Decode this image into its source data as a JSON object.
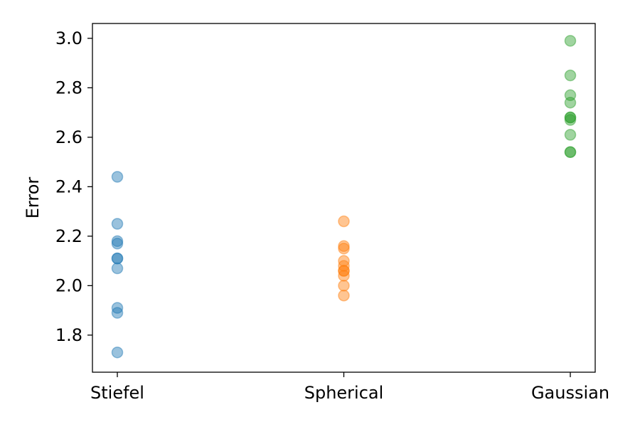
{
  "chart_data": {
    "type": "scatter",
    "title": "",
    "xlabel": "",
    "ylabel": "Error",
    "categories": [
      "Stiefel",
      "Spherical",
      "Gaussian"
    ],
    "ylim": [
      1.65,
      3.06
    ],
    "yticks": [
      1.8,
      2.0,
      2.2,
      2.4,
      2.6,
      2.8,
      3.0
    ],
    "ytick_labels": [
      "1.8",
      "2.0",
      "2.2",
      "2.4",
      "2.6",
      "2.8",
      "3.0"
    ],
    "grid": false,
    "legend": "none",
    "marker_opacity": 0.45,
    "series": [
      {
        "category": "Stiefel",
        "color": "#1f77b4",
        "values": [
          2.44,
          2.25,
          2.18,
          2.17,
          2.11,
          2.11,
          2.07,
          1.91,
          1.89,
          1.73
        ]
      },
      {
        "category": "Spherical",
        "color": "#ff7f0e",
        "values": [
          2.26,
          2.16,
          2.15,
          2.1,
          2.08,
          2.06,
          2.06,
          2.04,
          2.0,
          1.96
        ]
      },
      {
        "category": "Gaussian",
        "color": "#2ca02c",
        "values": [
          2.99,
          2.85,
          2.77,
          2.74,
          2.68,
          2.68,
          2.67,
          2.61,
          2.54,
          2.54
        ]
      }
    ]
  }
}
